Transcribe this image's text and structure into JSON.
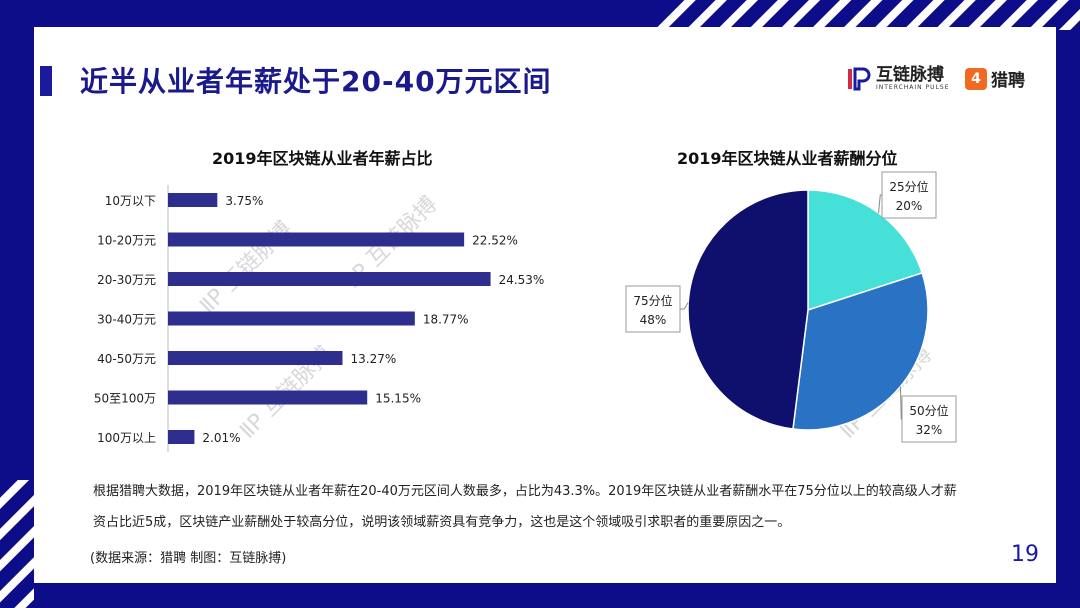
{
  "header": {
    "title": "近半从业者年薪处于20-40万元区间",
    "logo1_cn": "互链脉搏",
    "logo1_en": "INTERCHAIN PULSE",
    "logo2_mark": "4",
    "logo2_text": "猎聘"
  },
  "chart_data": [
    {
      "type": "bar",
      "orientation": "horizontal",
      "title": "2019年区块链从业者年薪占比",
      "categories": [
        "10万以下",
        "10-20万元",
        "20-30万元",
        "30-40万元",
        "40-50万元",
        "50至100万",
        "100万以上"
      ],
      "values": [
        3.75,
        22.52,
        24.53,
        18.77,
        13.27,
        15.15,
        2.01
      ],
      "data_labels": [
        "3.75%",
        "22.52%",
        "24.53%",
        "18.77%",
        "13.27%",
        "15.15%",
        "2.01%"
      ],
      "unit": "%",
      "color": "#2e2e8f"
    },
    {
      "type": "pie",
      "title": "2019年区块链从业者薪酬分位",
      "slices": [
        {
          "name": "25分位",
          "value": 20,
          "label": "20%",
          "color": "#45e0d8"
        },
        {
          "name": "50分位",
          "value": 32,
          "label": "32%",
          "color": "#2a72c4"
        },
        {
          "name": "75分位",
          "value": 48,
          "label": "48%",
          "color": "#0f0f6e"
        }
      ]
    }
  ],
  "notes": {
    "line1": "根据猎聘大数据，2019年区块链从业者年薪在20-40万元区间人数最多，占比为43.3%。2019年区块链从业者薪酬水平在75分位以上的较高级人才薪",
    "line2": "资占比近5成，区块链产业薪酬处于较高分位，说明该领域薪资具有竞争力，这也是这个领域吸引求职者的重要原因之一。",
    "source": "(数据来源：猎聘   制图：互链脉搏)"
  },
  "page_number": "19",
  "colors": {
    "frame": "#0d0d8a",
    "accent": "#1a1a9c"
  }
}
